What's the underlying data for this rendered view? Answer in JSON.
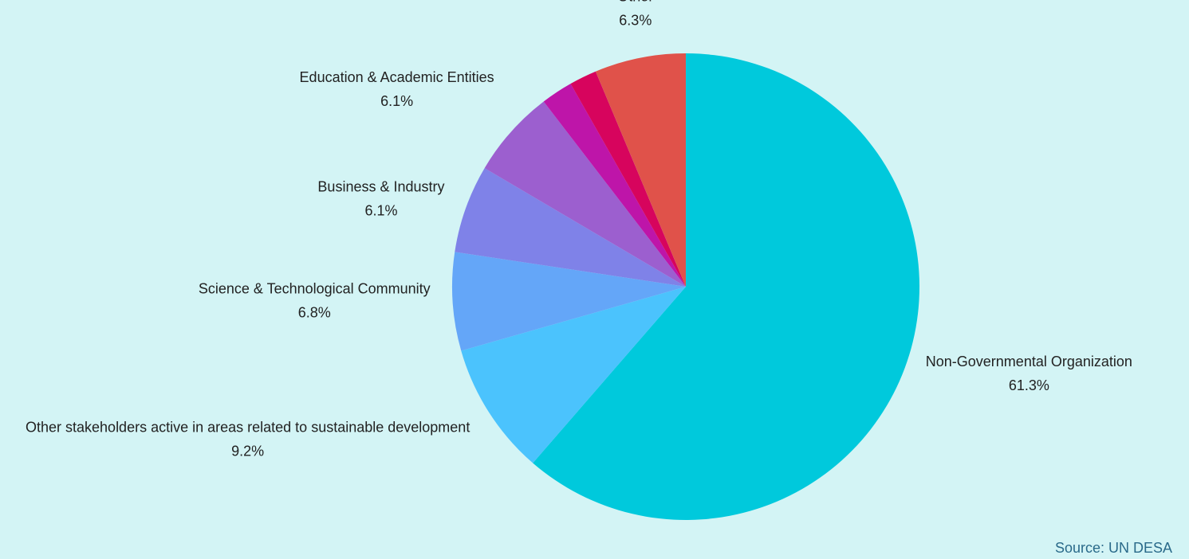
{
  "chart_data": {
    "type": "pie",
    "categories": [
      "Non-Governmental Organization",
      "Other stakeholders active in areas related to sustainable development",
      "Science & Technological Community",
      "Business & Industry",
      "Education & Academic Entities",
      null,
      null,
      "Other"
    ],
    "values": [
      61.3,
      9.2,
      6.8,
      6.1,
      6.1,
      2.2,
      1.9,
      6.3
    ],
    "value_labels": [
      "61.3%",
      "9.2%",
      "6.8%",
      "6.1%",
      "6.1%",
      null,
      null,
      "6.3%"
    ],
    "colors": [
      "#00c9dc",
      "#4bc3fd",
      "#64a6f8",
      "#7f82e8",
      "#9c5fcf",
      "#be15a9",
      "#d7045d",
      "#e0524a"
    ],
    "source": "Source: UN DESA"
  }
}
